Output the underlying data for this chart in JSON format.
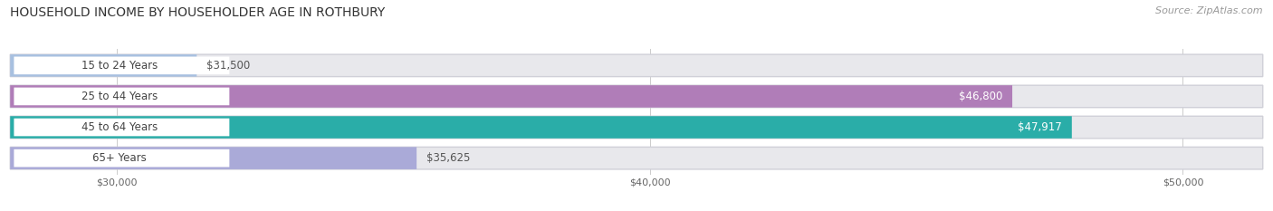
{
  "title": "HOUSEHOLD INCOME BY HOUSEHOLDER AGE IN ROTHBURY",
  "source": "Source: ZipAtlas.com",
  "categories": [
    "15 to 24 Years",
    "25 to 44 Years",
    "45 to 64 Years",
    "65+ Years"
  ],
  "values": [
    31500,
    46800,
    47917,
    35625
  ],
  "bar_colors": [
    "#a8c0e0",
    "#b07db8",
    "#2aada8",
    "#aaaad8"
  ],
  "bar_labels": [
    "$31,500",
    "$46,800",
    "$47,917",
    "$35,625"
  ],
  "x_min": 28000,
  "x_max": 51500,
  "x_ticks": [
    30000,
    40000,
    50000
  ],
  "x_tick_labels": [
    "$30,000",
    "$40,000",
    "$50,000"
  ],
  "background_color": "#ffffff",
  "bar_bg_color": "#e8e8ec",
  "bar_bg_border": "#d0d0d8",
  "title_fontsize": 10,
  "source_fontsize": 8,
  "label_fontsize": 8.5,
  "tick_fontsize": 8,
  "pill_text_color": "#444444",
  "value_label_outside_color": "#555555",
  "value_label_inside_color": "#ffffff"
}
